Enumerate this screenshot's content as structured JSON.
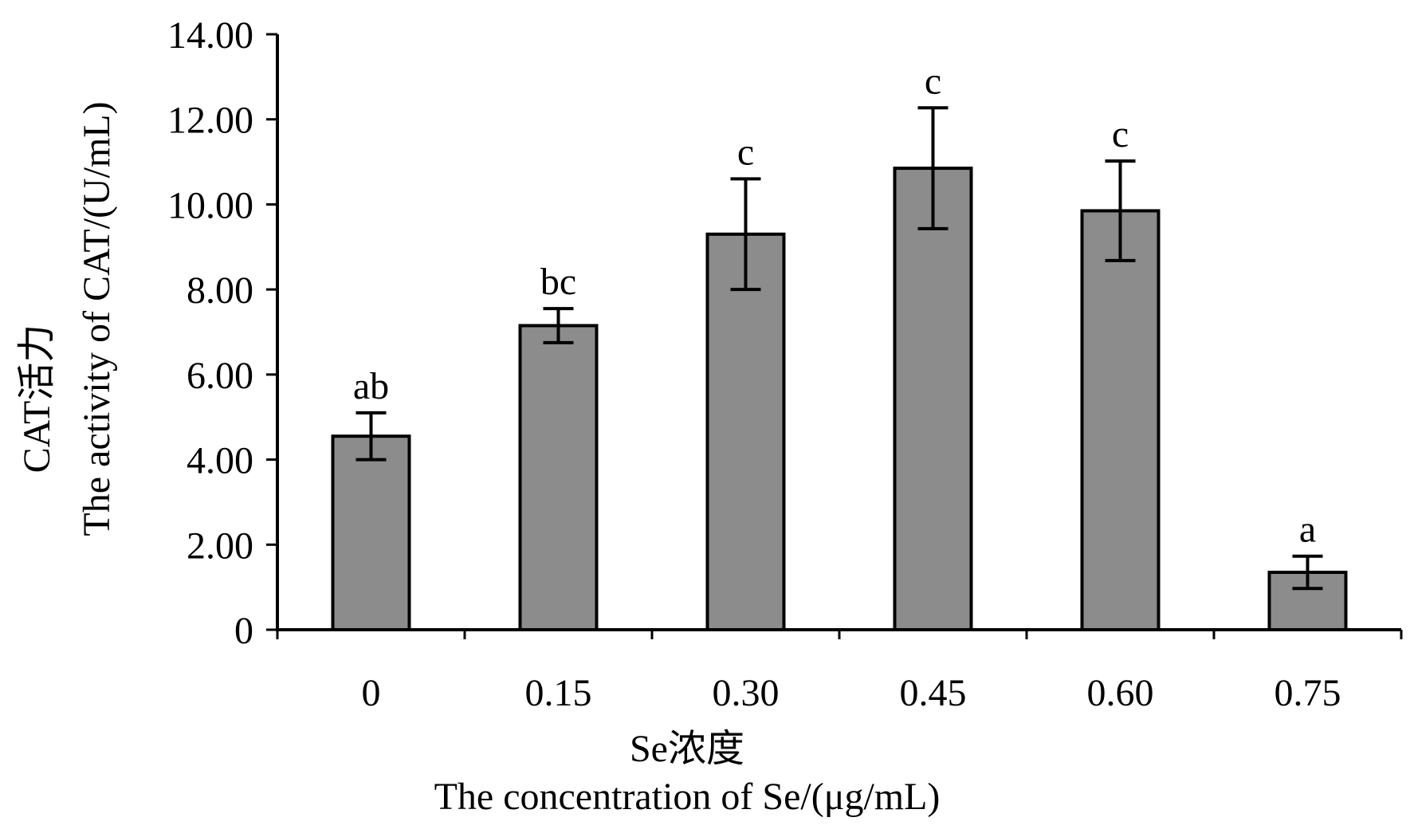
{
  "chart_data": {
    "type": "bar",
    "categories": [
      "0",
      "0.15",
      "0.30",
      "0.45",
      "0.60",
      "0.75"
    ],
    "values": [
      4.55,
      7.15,
      9.3,
      10.85,
      9.85,
      1.35
    ],
    "errors": [
      0.55,
      0.4,
      1.3,
      1.42,
      1.17,
      0.38
    ],
    "significance": [
      "ab",
      "bc",
      "c",
      "c",
      "c",
      "a"
    ],
    "ylim": [
      0,
      14
    ],
    "yticks": [
      "0",
      "2.00",
      "4.00",
      "6.00",
      "8.00",
      "10.00",
      "12.00",
      "14.00"
    ],
    "ylabel_line1": "CAT活力",
    "ylabel_line2": "The activity of CAT/(U/mL)",
    "xlabel_line1": "Se浓度",
    "xlabel_line2": "The concentration of Se/(μg/mL)",
    "bar_color": "#8c8c8c",
    "grid": false
  }
}
